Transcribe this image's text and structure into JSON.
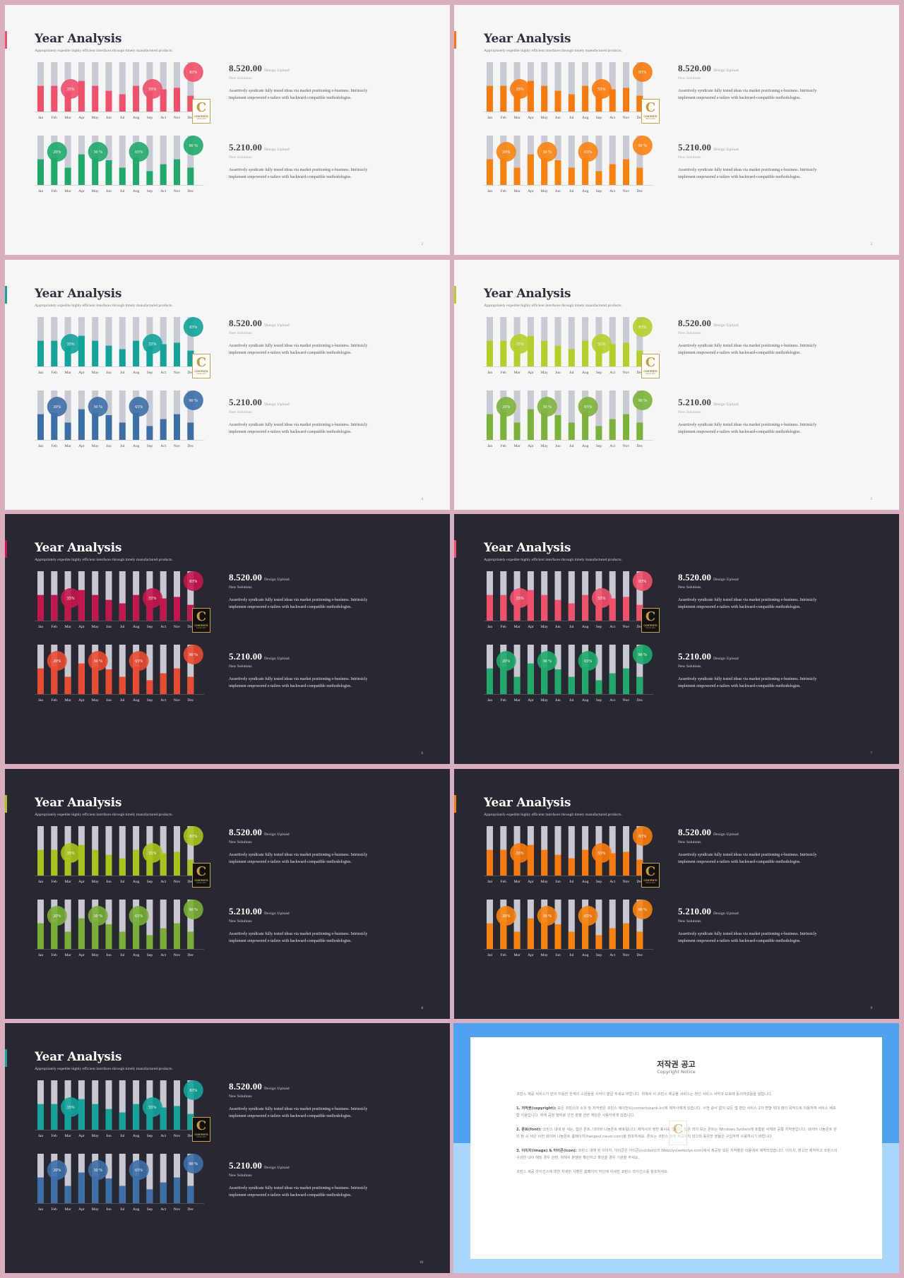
{
  "slides": [
    {
      "page": "2",
      "theme": "light",
      "top_color": "#f0506a",
      "bottom_color": "#1faa6b",
      "accent": "#f0506a",
      "bubble_top": "#f0506a",
      "bubble_bottom": "#1faa6b"
    },
    {
      "page": "3",
      "theme": "light",
      "top_color": "#f97a0c",
      "bottom_color": "#f9820f",
      "accent": "#f97a0c",
      "bubble_top": "#f97a0c",
      "bubble_bottom": "#f9820f"
    },
    {
      "page": "4",
      "theme": "light",
      "top_color": "#13a39a",
      "bottom_color": "#3c6fa8",
      "accent": "#13a39a",
      "bubble_top": "#13a39a",
      "bubble_bottom": "#3c6fa8"
    },
    {
      "page": "5",
      "theme": "light",
      "top_color": "#b5cf2a",
      "bottom_color": "#7bb33a",
      "accent": "#b5cf2a",
      "bubble_top": "#b5cf2a",
      "bubble_bottom": "#7bb33a"
    },
    {
      "page": "6",
      "theme": "dark",
      "top_color": "#c4164c",
      "bottom_color": "#ea4a32",
      "accent": "#c4164c",
      "bubble_top": "#c4164c",
      "bubble_bottom": "#ea4a32"
    },
    {
      "page": "7",
      "theme": "dark",
      "top_color": "#f2506a",
      "bottom_color": "#1faa6b",
      "accent": "#f2506a",
      "bubble_top": "#f2506a",
      "bubble_bottom": "#1faa6b"
    },
    {
      "page": "8",
      "theme": "dark",
      "top_color": "#a9c31c",
      "bottom_color": "#78ae35",
      "accent": "#a9c31c",
      "bubble_top": "#a9c31c",
      "bubble_bottom": "#78ae35"
    },
    {
      "page": "9",
      "theme": "dark",
      "top_color": "#f97a0c",
      "bottom_color": "#f9820f",
      "accent": "#f97a0c",
      "bubble_top": "#f97a0c",
      "bubble_bottom": "#f9820f"
    },
    {
      "page": "10",
      "theme": "dark",
      "top_color": "#13a39a",
      "bottom_color": "#3c6fa8",
      "accent": "#13a39a",
      "bubble_top": "#13a39a",
      "bubble_bottom": "#3c6fa8"
    }
  ],
  "slide_text": {
    "title": "Year Analysis",
    "subtitle": "Appropriately expedite highly efficient interfaces through timely manufactured products.",
    "stat1_value": "8.520.00",
    "stat2_value": "5.210.00",
    "stat_caption": "Design Upload",
    "stat_sub": "New Solutions",
    "stat_body": "Assertively syndicate fully tested ideas via market positioning e-business. Intrinsicly implement empowered e-tailers with backward-compatible methodologies."
  },
  "logo": {
    "letter": "C",
    "text": "CONTENTS",
    "tag": "SINCE 2010"
  },
  "chart_data": [
    {
      "type": "bar",
      "title": "",
      "categories": [
        "Jan",
        "Feb",
        "Mar",
        "Apr",
        "May",
        "Jun",
        "Jul",
        "Aug",
        "Sep",
        "Act",
        "Nov",
        "Dec"
      ],
      "ylim": [
        0,
        100
      ],
      "series": [
        {
          "values": [
            52,
            52,
            40,
            62,
            52,
            42,
            35,
            52,
            40,
            45,
            48,
            32
          ]
        }
      ],
      "bubbles": [
        {
          "category_index": 2,
          "label": "35%"
        },
        {
          "category_index": 8,
          "label": "55%"
        },
        {
          "category_index": 11,
          "label": "83%"
        }
      ]
    },
    {
      "type": "bar",
      "title": "",
      "categories": [
        "Jan",
        "Feb",
        "Mar",
        "Apr",
        "May",
        "Jun",
        "Jul",
        "Aug",
        "Sep",
        "Act",
        "Nov",
        "Dec"
      ],
      "ylim": [
        0,
        100
      ],
      "series": [
        {
          "values": [
            52,
            55,
            35,
            62,
            55,
            50,
            35,
            55,
            28,
            42,
            52,
            35
          ]
        }
      ],
      "bubbles": [
        {
          "category_index": 1,
          "label": "20%"
        },
        {
          "category_index": 4,
          "label": "30 %"
        },
        {
          "category_index": 7,
          "label": "65%"
        },
        {
          "category_index": 11,
          "label": "90 %"
        }
      ]
    }
  ],
  "notice": {
    "title": "저작권 공고",
    "subtitle": "Copyright Notice",
    "paragraphs": [
      {
        "label": "",
        "text": "코핀스 제공 서비스가 만이 미등한 한계의 소원들을 시작이 발급 주세요 바랍니다. 위해서 이 코핀스 제공물 서비스는 첫인 서비스 서약과 보호에 동의하였음을 말합니다."
      },
      {
        "label": "1. 저작권(copyright):",
        "text": "모든 코핀스의 소유 및 저작권은 코핀스 에이전시(contentsbank.kr)에 제작사에게 있습니다. 사전 승낙 없이 모든 앱 판단 서비스 2차 변형 위대 영리 목적으로 이용하여 서비스 배포함 이용입니다. 위에 공정 행위로 인한 분쟁 관련 책임은 사용자에게 있습니다."
      },
      {
        "label": "2. 폰트(font):",
        "text": "코핀스 내에 된 세는, 합은 폰트, 네이버 나눔폰트 배포됩니다. 제작사의 정한 표시를 합니다. 합은 외의 보는 폰트는 Windows System에 포함된 서체와 공통 저작권입니다. 네이버 나눔폰트 관리 판 시 세은 사전 네이버 나눔폰트 홈페이지(hangeul.naver.com)을 참조하세요. 폰트는 코핀스 정에 제공되지 않으며 동유한 분들은 구입하여 사용하시기 바랍니다."
      },
      {
        "label": "3. 이미지(image) & 아이콘(icon):",
        "text": "코핀스 내에 된 이미지, 아이콘은 아이콘(iconbolt)과 Webolys(webolys.com)에서 제공된 모든 저작물은 이용에서 제작되었습니다. 이미지, 창고전 제작하고 코핀스의 구성한 내이 해당 경우 관련, 위해서 분쟁된 확인하고 확인을 경우 기관을 주세요."
      },
      {
        "label": "",
        "text": "코핀스 제공 라이선스에 대한 자세한 사항은 홈페이지 하단에 자세한 코핀스 라이선스를 참조하세요."
      }
    ]
  }
}
